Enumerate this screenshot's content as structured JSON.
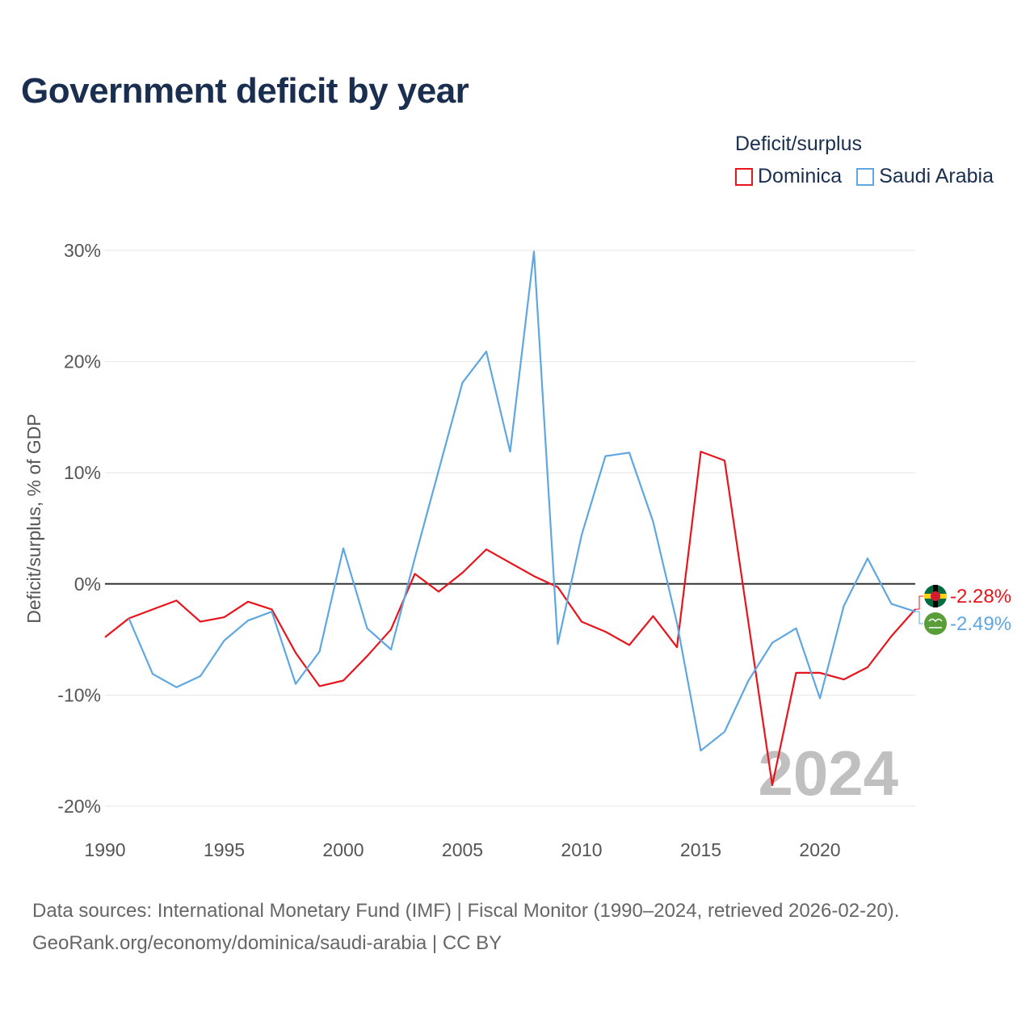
{
  "title": "Government deficit by year",
  "legend": {
    "title": "Deficit/surplus",
    "items": [
      {
        "name": "Dominica",
        "color": "#e8141c"
      },
      {
        "name": "Saudi Arabia",
        "color": "#5ea7e0"
      }
    ]
  },
  "sources": {
    "line1": "Data sources: International Monetary Fund (IMF) | Fiscal Monitor (1990–2024, retrieved 2026-02-20).",
    "line2": "GeoRank.org/economy/dominica/saudi-arabia | CC BY"
  },
  "chart_data": {
    "type": "line",
    "title": "Government deficit by year",
    "xlabel": "",
    "ylabel": "Deficit/surplus, % of GDP",
    "xlim": [
      1990,
      2024
    ],
    "ylim": [
      -20,
      30
    ],
    "x_ticks": [
      1990,
      1995,
      2000,
      2005,
      2010,
      2015,
      2020
    ],
    "y_ticks": [
      {
        "value": 30,
        "label": "30%"
      },
      {
        "value": 20,
        "label": "20%"
      },
      {
        "value": 10,
        "label": "10%"
      },
      {
        "value": 0,
        "label": "0%"
      },
      {
        "value": -10,
        "label": "-10%"
      },
      {
        "value": -20,
        "label": "-20%"
      }
    ],
    "watermark_year": "2024",
    "series": [
      {
        "name": "Dominica",
        "color": "#e8141c",
        "end_label": "-2.28%",
        "points": [
          [
            1990,
            -4.8
          ],
          [
            1991,
            -3.1
          ],
          [
            1992,
            -2.3
          ],
          [
            1993,
            -1.5
          ],
          [
            1994,
            -3.4
          ],
          [
            1995,
            -3.0
          ],
          [
            1996,
            -1.6
          ],
          [
            1997,
            -2.3
          ],
          [
            1998,
            -6.2
          ],
          [
            1999,
            -9.2
          ],
          [
            2000,
            -8.7
          ],
          [
            2001,
            -6.5
          ],
          [
            2002,
            -4.1
          ],
          [
            2003,
            0.9
          ],
          [
            2004,
            -0.7
          ],
          [
            2005,
            1.0
          ],
          [
            2006,
            3.1
          ],
          [
            2007,
            1.9
          ],
          [
            2008,
            0.7
          ],
          [
            2009,
            -0.3
          ],
          [
            2010,
            -3.4
          ],
          [
            2011,
            -4.3
          ],
          [
            2012,
            -5.5
          ],
          [
            2013,
            -2.9
          ],
          [
            2014,
            -5.7
          ],
          [
            2015,
            11.9
          ],
          [
            2016,
            11.1
          ],
          [
            2017,
            -3.5
          ],
          [
            2018,
            -18.1
          ],
          [
            2019,
            -8.0
          ],
          [
            2020,
            -8.0
          ],
          [
            2021,
            -8.6
          ],
          [
            2022,
            -7.5
          ],
          [
            2023,
            -4.7
          ],
          [
            2024,
            -2.28
          ]
        ]
      },
      {
        "name": "Saudi Arabia",
        "color": "#5ea7e0",
        "end_label": "-2.49%",
        "points": [
          [
            1991,
            -3.1
          ],
          [
            1992,
            -8.1
          ],
          [
            1993,
            -9.3
          ],
          [
            1994,
            -8.3
          ],
          [
            1995,
            -5.1
          ],
          [
            1996,
            -3.3
          ],
          [
            1997,
            -2.5
          ],
          [
            1998,
            -9.0
          ],
          [
            1999,
            -6.1
          ],
          [
            2000,
            3.2
          ],
          [
            2001,
            -4.0
          ],
          [
            2002,
            -5.9
          ],
          [
            2003,
            2.3
          ],
          [
            2004,
            10.2
          ],
          [
            2005,
            18.1
          ],
          [
            2006,
            20.9
          ],
          [
            2007,
            11.9
          ],
          [
            2008,
            29.9
          ],
          [
            2009,
            -5.4
          ],
          [
            2010,
            4.4
          ],
          [
            2011,
            11.5
          ],
          [
            2012,
            11.8
          ],
          [
            2013,
            5.6
          ],
          [
            2014,
            -3.5
          ],
          [
            2015,
            -15.0
          ],
          [
            2016,
            -13.3
          ],
          [
            2017,
            -8.7
          ],
          [
            2018,
            -5.3
          ],
          [
            2019,
            -4.0
          ],
          [
            2020,
            -10.3
          ],
          [
            2021,
            -2.0
          ],
          [
            2022,
            2.3
          ],
          [
            2023,
            -1.8
          ],
          [
            2024,
            -2.49
          ]
        ]
      }
    ]
  }
}
